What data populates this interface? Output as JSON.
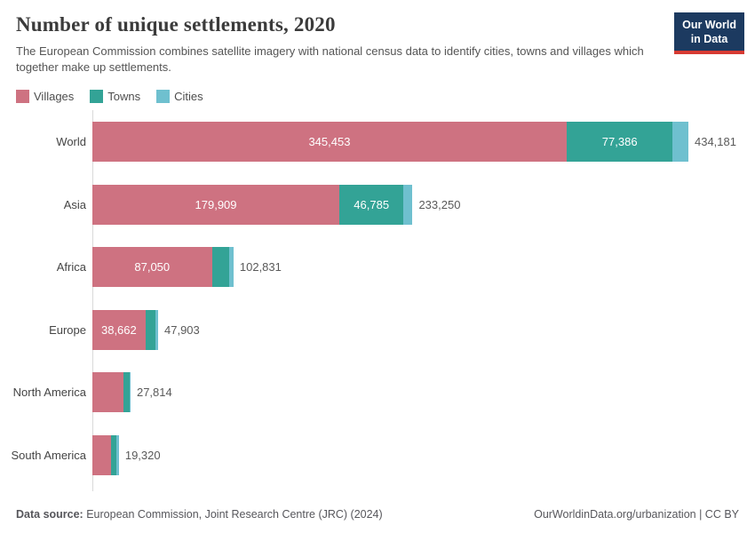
{
  "header": {
    "title": "Number of unique settlements, 2020",
    "subtitle": "The European Commission combines satellite imagery with national census data to identify cities, towns and villages which together make up settlements.",
    "logo": {
      "line1": "Our World",
      "line2": "in Data"
    }
  },
  "colors": {
    "villages": "#ce7281",
    "towns": "#33a396",
    "cities": "#6fc0cf",
    "axis": "#d9d9d9",
    "logo_navy": "#1c3a60",
    "logo_red": "#d73b33"
  },
  "legend": {
    "items": [
      {
        "label": "Villages",
        "color": "#ce7281"
      },
      {
        "label": "Towns",
        "color": "#33a396"
      },
      {
        "label": "Cities",
        "color": "#6fc0cf"
      }
    ]
  },
  "chart_data": {
    "type": "bar",
    "orientation": "horizontal",
    "stacked": true,
    "grid": false,
    "legend_position": "top",
    "xmax": 434181,
    "categories": [
      "World",
      "Asia",
      "Africa",
      "Europe",
      "North America",
      "South America"
    ],
    "series": [
      {
        "name": "Villages",
        "color": "#ce7281",
        "values": [
          345453,
          179909,
          87050,
          38662,
          22650,
          13600
        ]
      },
      {
        "name": "Towns",
        "color": "#33a396",
        "values": [
          77386,
          46785,
          12900,
          7150,
          4550,
          3900
        ]
      },
      {
        "name": "Cities",
        "color": "#6fc0cf",
        "values": [
          11342,
          6556,
          2881,
          2091,
          614,
          1820
        ]
      }
    ],
    "segment_labels": [
      [
        "345,453",
        "77,386",
        ""
      ],
      [
        "179,909",
        "46,785",
        ""
      ],
      [
        "87,050",
        "",
        ""
      ],
      [
        "38,662",
        "",
        ""
      ],
      [
        "",
        "",
        ""
      ],
      [
        "",
        "",
        ""
      ]
    ],
    "totals": [
      434181,
      233250,
      102831,
      47903,
      27814,
      19320
    ],
    "total_labels": [
      "434,181",
      "233,250",
      "102,831",
      "47,903",
      "27,814",
      "19,320"
    ]
  },
  "footer": {
    "source_label": "Data source:",
    "source_text": " European Commission, Joint Research Centre (JRC) (2024)",
    "right_text": "OurWorldinData.org/urbanization | CC BY"
  }
}
